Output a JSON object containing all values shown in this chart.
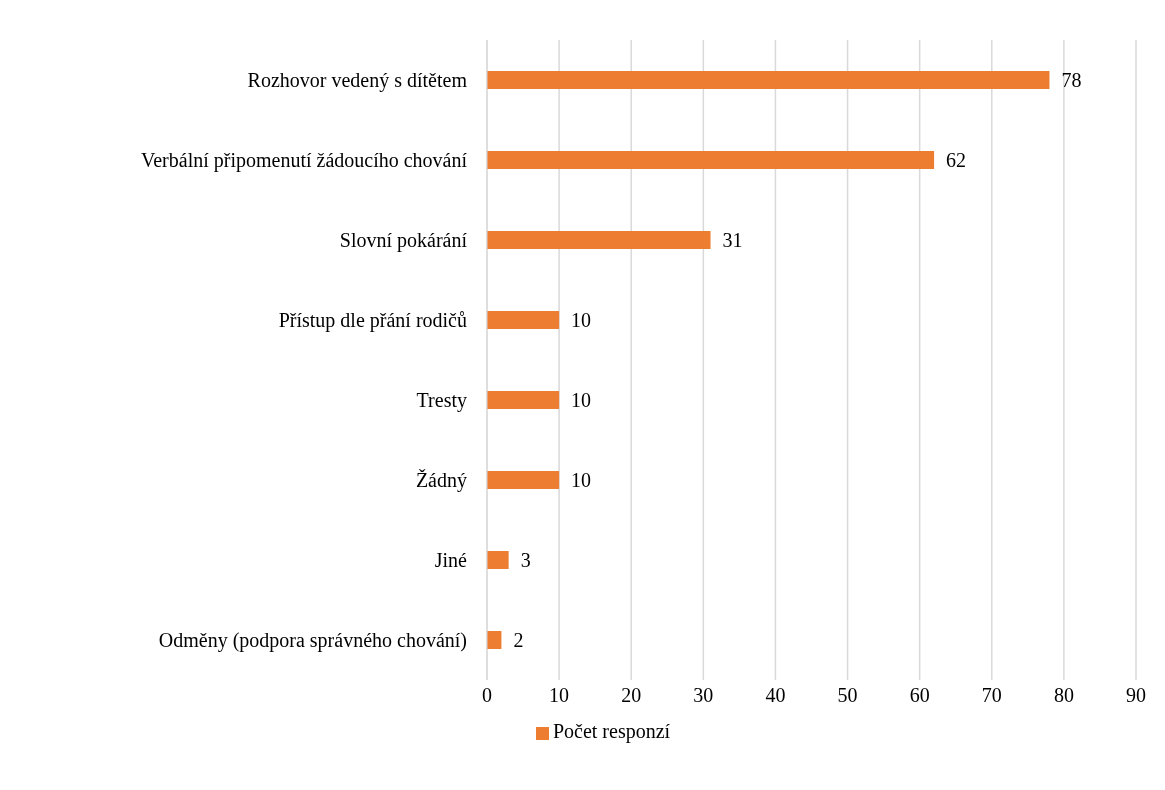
{
  "chart_data": {
    "type": "bar",
    "orientation": "horizontal",
    "categories": [
      "Rozhovor vedený s dítětem",
      "Verbální připomenutí žádoucího chování",
      "Slovní pokárání",
      "Přístup dle přání rodičů",
      "Tresty",
      "Žádný",
      "Jiné",
      "Odměny (podpora správného chování)"
    ],
    "series": [
      {
        "name": "Počet responzí",
        "color": "#ed7d31",
        "values": [
          78,
          62,
          31,
          10,
          10,
          10,
          3,
          2
        ]
      }
    ],
    "xlim": [
      0,
      90
    ],
    "xticks": [
      0,
      10,
      20,
      30,
      40,
      50,
      60,
      70,
      80,
      90
    ],
    "grid": "x",
    "legend": "bottom",
    "data_labels": true
  }
}
